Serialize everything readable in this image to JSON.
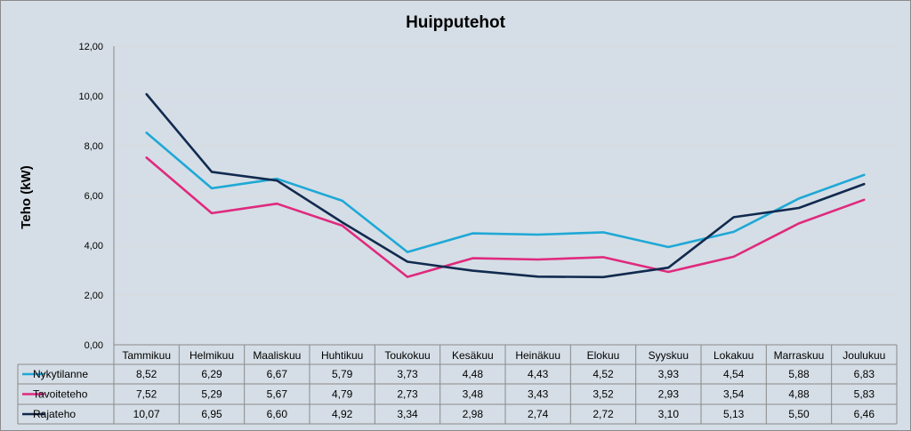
{
  "chart_data": {
    "type": "line",
    "title": "Huipputehot",
    "ylabel": "Teho (kW)",
    "xlabel": "",
    "ylim": [
      0,
      12
    ],
    "ytick_step": 2,
    "ytick_labels": [
      "0,00",
      "2,00",
      "4,00",
      "6,00",
      "8,00",
      "10,00",
      "12,00"
    ],
    "grid": true,
    "legend": "data-table",
    "categories": [
      "Tammikuu",
      "Helmikuu",
      "Maaliskuu",
      "Huhtikuu",
      "Toukokuu",
      "Kesäkuu",
      "Heinäkuu",
      "Elokuu",
      "Syyskuu",
      "Lokakuu",
      "Marraskuu",
      "Joulukuu"
    ],
    "series": [
      {
        "name": "Nykytilanne",
        "color": "#1fa8d6",
        "values": [
          8.52,
          6.29,
          6.67,
          5.79,
          3.73,
          4.48,
          4.43,
          4.52,
          3.93,
          4.54,
          5.88,
          6.83
        ],
        "labels": [
          "8,52",
          "6,29",
          "6,67",
          "5,79",
          "3,73",
          "4,48",
          "4,43",
          "4,52",
          "3,93",
          "4,54",
          "5,88",
          "6,83"
        ]
      },
      {
        "name": "Tavoiteteho",
        "color": "#df2a7e",
        "values": [
          7.52,
          5.29,
          5.67,
          4.79,
          2.73,
          3.48,
          3.43,
          3.52,
          2.93,
          3.54,
          4.88,
          5.83
        ],
        "labels": [
          "7,52",
          "5,29",
          "5,67",
          "4,79",
          "2,73",
          "3,48",
          "3,43",
          "3,52",
          "2,93",
          "3,54",
          "4,88",
          "5,83"
        ]
      },
      {
        "name": "Rajateho",
        "color": "#112a4f",
        "values": [
          10.07,
          6.95,
          6.6,
          4.92,
          3.34,
          2.98,
          2.74,
          2.72,
          3.1,
          5.13,
          5.5,
          6.46
        ],
        "labels": [
          "10,07",
          "6,95",
          "6,60",
          "4,92",
          "3,34",
          "2,98",
          "2,74",
          "2,72",
          "3,10",
          "5,13",
          "5,50",
          "6,46"
        ]
      }
    ]
  }
}
